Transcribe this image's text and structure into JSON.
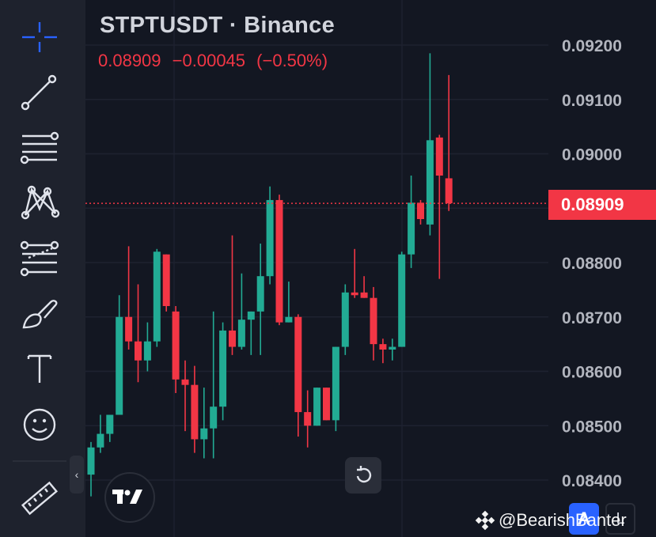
{
  "header": {
    "title": "STPTUSDT · Binance",
    "last_price": "0.08909",
    "change": "−0.00045",
    "change_pct": "(−0.50%)"
  },
  "price_label": "0.08909",
  "watermark": "@BearishBanter",
  "buttons": {
    "auto": "A",
    "log": "L"
  },
  "toolbar": {
    "items": [
      "crosshair-icon",
      "trendline-icon",
      "horizontal-lines-icon",
      "pattern-icon",
      "fib-icon",
      "brush-icon",
      "text-icon",
      "emoji-icon",
      "ruler-icon"
    ]
  },
  "colors": {
    "up": "#22ab94",
    "down": "#f23645",
    "background": "#131722",
    "grid": "#2a2e39",
    "accent": "#2962ff"
  },
  "chart_data": {
    "type": "candlestick",
    "y_axis": {
      "ticks": [
        "0.09200",
        "0.09100",
        "0.09000",
        "0.08800",
        "0.08700",
        "0.08600",
        "0.08500",
        "0.08400"
      ],
      "range": [
        0.0837,
        0.0922
      ]
    },
    "last_price": 0.08909,
    "candles": [
      {
        "o": 0.0841,
        "h": 0.0847,
        "l": 0.0837,
        "c": 0.0846
      },
      {
        "o": 0.0846,
        "h": 0.0852,
        "l": 0.0845,
        "c": 0.08485
      },
      {
        "o": 0.08485,
        "h": 0.0852,
        "l": 0.0847,
        "c": 0.0852
      },
      {
        "o": 0.0852,
        "h": 0.0874,
        "l": 0.0852,
        "c": 0.087
      },
      {
        "o": 0.087,
        "h": 0.0883,
        "l": 0.0864,
        "c": 0.08655
      },
      {
        "o": 0.08655,
        "h": 0.0876,
        "l": 0.0858,
        "c": 0.0862
      },
      {
        "o": 0.0862,
        "h": 0.0869,
        "l": 0.086,
        "c": 0.08655
      },
      {
        "o": 0.08655,
        "h": 0.08825,
        "l": 0.08645,
        "c": 0.0882
      },
      {
        "o": 0.08815,
        "h": 0.08815,
        "l": 0.0871,
        "c": 0.0872
      },
      {
        "o": 0.0871,
        "h": 0.0872,
        "l": 0.0856,
        "c": 0.08585
      },
      {
        "o": 0.08585,
        "h": 0.0862,
        "l": 0.0849,
        "c": 0.08575
      },
      {
        "o": 0.08575,
        "h": 0.0861,
        "l": 0.0845,
        "c": 0.08475
      },
      {
        "o": 0.08475,
        "h": 0.0857,
        "l": 0.0844,
        "c": 0.08495
      },
      {
        "o": 0.08495,
        "h": 0.0871,
        "l": 0.0844,
        "c": 0.08535
      },
      {
        "o": 0.08535,
        "h": 0.0869,
        "l": 0.0851,
        "c": 0.08675
      },
      {
        "o": 0.08675,
        "h": 0.0885,
        "l": 0.0863,
        "c": 0.08645
      },
      {
        "o": 0.08645,
        "h": 0.0878,
        "l": 0.0864,
        "c": 0.08695
      },
      {
        "o": 0.08695,
        "h": 0.0871,
        "l": 0.0863,
        "c": 0.0871
      },
      {
        "o": 0.0871,
        "h": 0.08835,
        "l": 0.0863,
        "c": 0.08775
      },
      {
        "o": 0.08775,
        "h": 0.0894,
        "l": 0.0876,
        "c": 0.08915
      },
      {
        "o": 0.08915,
        "h": 0.08925,
        "l": 0.08685,
        "c": 0.0869
      },
      {
        "o": 0.0869,
        "h": 0.08765,
        "l": 0.0869,
        "c": 0.087
      },
      {
        "o": 0.087,
        "h": 0.08705,
        "l": 0.0848,
        "c": 0.08525
      },
      {
        "o": 0.08525,
        "h": 0.08565,
        "l": 0.0846,
        "c": 0.085
      },
      {
        "o": 0.085,
        "h": 0.0857,
        "l": 0.085,
        "c": 0.0857
      },
      {
        "o": 0.0857,
        "h": 0.0857,
        "l": 0.0851,
        "c": 0.0851
      },
      {
        "o": 0.0851,
        "h": 0.08645,
        "l": 0.0849,
        "c": 0.08645
      },
      {
        "o": 0.08645,
        "h": 0.0876,
        "l": 0.0863,
        "c": 0.08745
      },
      {
        "o": 0.08745,
        "h": 0.08825,
        "l": 0.08735,
        "c": 0.0874
      },
      {
        "o": 0.08745,
        "h": 0.08775,
        "l": 0.08735,
        "c": 0.08735
      },
      {
        "o": 0.08735,
        "h": 0.08755,
        "l": 0.0862,
        "c": 0.0865
      },
      {
        "o": 0.0865,
        "h": 0.0866,
        "l": 0.08615,
        "c": 0.0864
      },
      {
        "o": 0.0864,
        "h": 0.0866,
        "l": 0.0862,
        "c": 0.08645
      },
      {
        "o": 0.08645,
        "h": 0.0882,
        "l": 0.08645,
        "c": 0.08815
      },
      {
        "o": 0.08815,
        "h": 0.0896,
        "l": 0.0879,
        "c": 0.0891
      },
      {
        "o": 0.0891,
        "h": 0.08915,
        "l": 0.0887,
        "c": 0.0888
      },
      {
        "o": 0.0887,
        "h": 0.09185,
        "l": 0.0885,
        "c": 0.09025
      },
      {
        "o": 0.0903,
        "h": 0.09035,
        "l": 0.0877,
        "c": 0.0896
      },
      {
        "o": 0.08955,
        "h": 0.09145,
        "l": 0.08895,
        "c": 0.08909
      }
    ]
  }
}
